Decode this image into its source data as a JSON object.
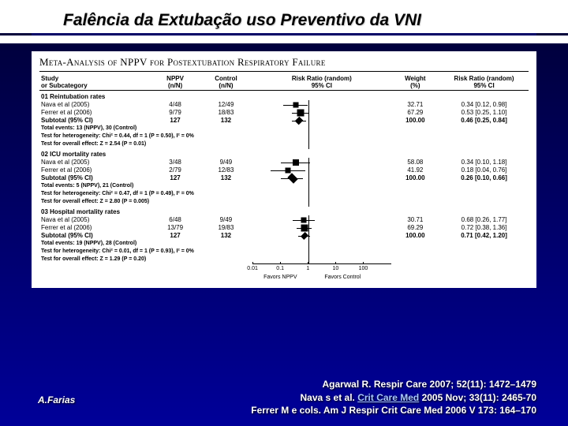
{
  "title": "Falência da Extubação uso Preventivo da VNI",
  "meta_title": "Meta-Analysis of NPPV for Postextubation Respiratory Failure",
  "headers": {
    "study": "Study\nor Subcategory",
    "nppv": "NPPV\n(n/N)",
    "control": "Control\n(n/N)",
    "rr_plot": "Risk Ratio (random)\n95% CI",
    "weight": "Weight\n(%)",
    "rr_text": "Risk Ratio (random)\n95% CI"
  },
  "plot": {
    "domain_log10": [
      -2,
      3
    ],
    "ticks": [
      {
        "val": 0.01,
        "label": "0.01"
      },
      {
        "val": 0.1,
        "label": "0.1"
      },
      {
        "val": 1,
        "label": "1"
      },
      {
        "val": 10,
        "label": "10"
      },
      {
        "val": 100,
        "label": "100"
      }
    ],
    "left_label": "Favors NPPV",
    "right_label": "Favors Control",
    "square_color": "#000000",
    "diamond_color": "#000000"
  },
  "sections": [
    {
      "title": "01 Reintubation rates",
      "rows": [
        {
          "study": "Nava et al (2005)",
          "nppv": "4/48",
          "control": "12/49",
          "weight": "32.71",
          "rr": "0.34 [0.12, 0.98]",
          "pt": 0.34,
          "lo": 0.12,
          "hi": 0.98,
          "sz": 7
        },
        {
          "study": "Ferrer et al (2006)",
          "nppv": "9/79",
          "control": "18/83",
          "weight": "67.29",
          "rr": "0.53 [0.25, 1.10]",
          "pt": 0.53,
          "lo": 0.25,
          "hi": 1.1,
          "sz": 9
        }
      ],
      "subtotal": {
        "nppv_n": "127",
        "control_n": "132",
        "weight": "100.00",
        "rr": "0.46 [0.25, 0.84]",
        "pt": 0.46,
        "lo": 0.25,
        "hi": 0.84
      },
      "stats": [
        "Total events: 13 (NPPV), 30 (Control)",
        "Test for heterogeneity: Chi² = 0.44, df = 1 (P = 0.50), I² = 0%",
        "Test for overall effect: Z = 2.54 (P = 0.01)"
      ]
    },
    {
      "title": "02 ICU mortality rates",
      "rows": [
        {
          "study": "Nava et al (2005)",
          "nppv": "3/48",
          "control": "9/49",
          "weight": "58.08",
          "rr": "0.34 [0.10, 1.18]",
          "pt": 0.34,
          "lo": 0.1,
          "hi": 1.18,
          "sz": 8
        },
        {
          "study": "Ferrer et al (2006)",
          "nppv": "2/79",
          "control": "12/83",
          "weight": "41.92",
          "rr": "0.18 [0.04, 0.76]",
          "pt": 0.18,
          "lo": 0.04,
          "hi": 0.76,
          "sz": 7
        }
      ],
      "subtotal": {
        "nppv_n": "127",
        "control_n": "132",
        "weight": "100.00",
        "rr": "0.26 [0.10, 0.66]",
        "pt": 0.26,
        "lo": 0.1,
        "hi": 0.66
      },
      "stats": [
        "Total events: 5 (NPPV), 21 (Control)",
        "Test for heterogeneity: Chi² = 0.47, df = 1 (P = 0.49), I² = 0%",
        "Test for overall effect: Z = 2.80 (P = 0.005)"
      ]
    },
    {
      "title": "03 Hospital mortality rates",
      "rows": [
        {
          "study": "Nava et al (2005)",
          "nppv": "6/48",
          "control": "9/49",
          "weight": "30.71",
          "rr": "0.68 [0.26, 1.77]",
          "pt": 0.68,
          "lo": 0.26,
          "hi": 1.77,
          "sz": 7
        },
        {
          "study": "Ferrer et al (2006)",
          "nppv": "13/79",
          "control": "19/83",
          "weight": "69.29",
          "rr": "0.72 [0.38, 1.36]",
          "pt": 0.72,
          "lo": 0.38,
          "hi": 1.36,
          "sz": 9
        }
      ],
      "subtotal": {
        "nppv_n": "127",
        "control_n": "132",
        "weight": "100.00",
        "rr": "0.71 [0.42, 1.20]",
        "pt": 0.71,
        "lo": 0.42,
        "hi": 1.2
      },
      "stats": [
        "Total events: 19 (NPPV), 28 (Control)",
        "Test for heterogeneity: Chi² = 0.01, df = 1 (P = 0.93), I² = 0%",
        "Test for overall effect: Z = 1.29 (P = 0.20)"
      ]
    }
  ],
  "author": "A.Farias",
  "citations": [
    {
      "pre": "Agarwal R. Respir Care 2007; 52(11): 1472–1479",
      "link": ""
    },
    {
      "pre": "Nava s et al. ",
      "link": "Crit Care Med",
      "post": " 2005 Nov; 33(11): 2465-70"
    },
    {
      "pre": "Ferrer M e cols. Am J Respir Crit Care Med 2006 V 173: 164–170",
      "link": ""
    }
  ]
}
